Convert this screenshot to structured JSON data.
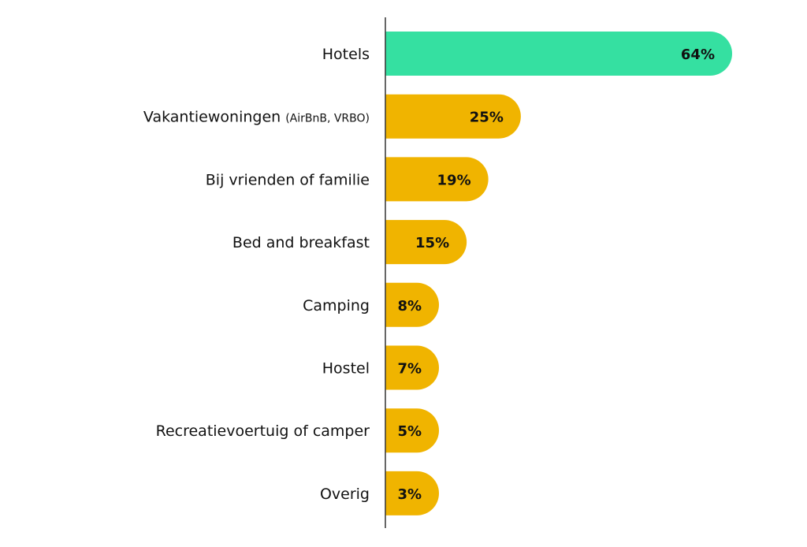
{
  "chart_data": {
    "type": "bar",
    "orientation": "horizontal",
    "categories": [
      {
        "label": "Hotels",
        "note": ""
      },
      {
        "label": "Vakantiewoningen",
        "note": "(AirBnB, VRBO)"
      },
      {
        "label": "Bij vrienden of familie",
        "note": ""
      },
      {
        "label": "Bed and breakfast",
        "note": ""
      },
      {
        "label": "Camping",
        "note": ""
      },
      {
        "label": "Hostel",
        "note": ""
      },
      {
        "label": "Recreatievoertuig of camper",
        "note": ""
      },
      {
        "label": "Overig",
        "note": ""
      }
    ],
    "values": [
      64,
      25,
      19,
      15,
      8,
      7,
      5,
      3
    ],
    "value_labels": [
      "64%",
      "25%",
      "19%",
      "15%",
      "8%",
      "7%",
      "5%",
      "3%"
    ],
    "xlim": [
      0,
      64
    ],
    "grid": false,
    "legend": "none",
    "highlight_index": 0,
    "colors": {
      "highlight": "#35E0A1",
      "default": "#F0B400",
      "axis": "#333333",
      "text": "#111111"
    }
  }
}
